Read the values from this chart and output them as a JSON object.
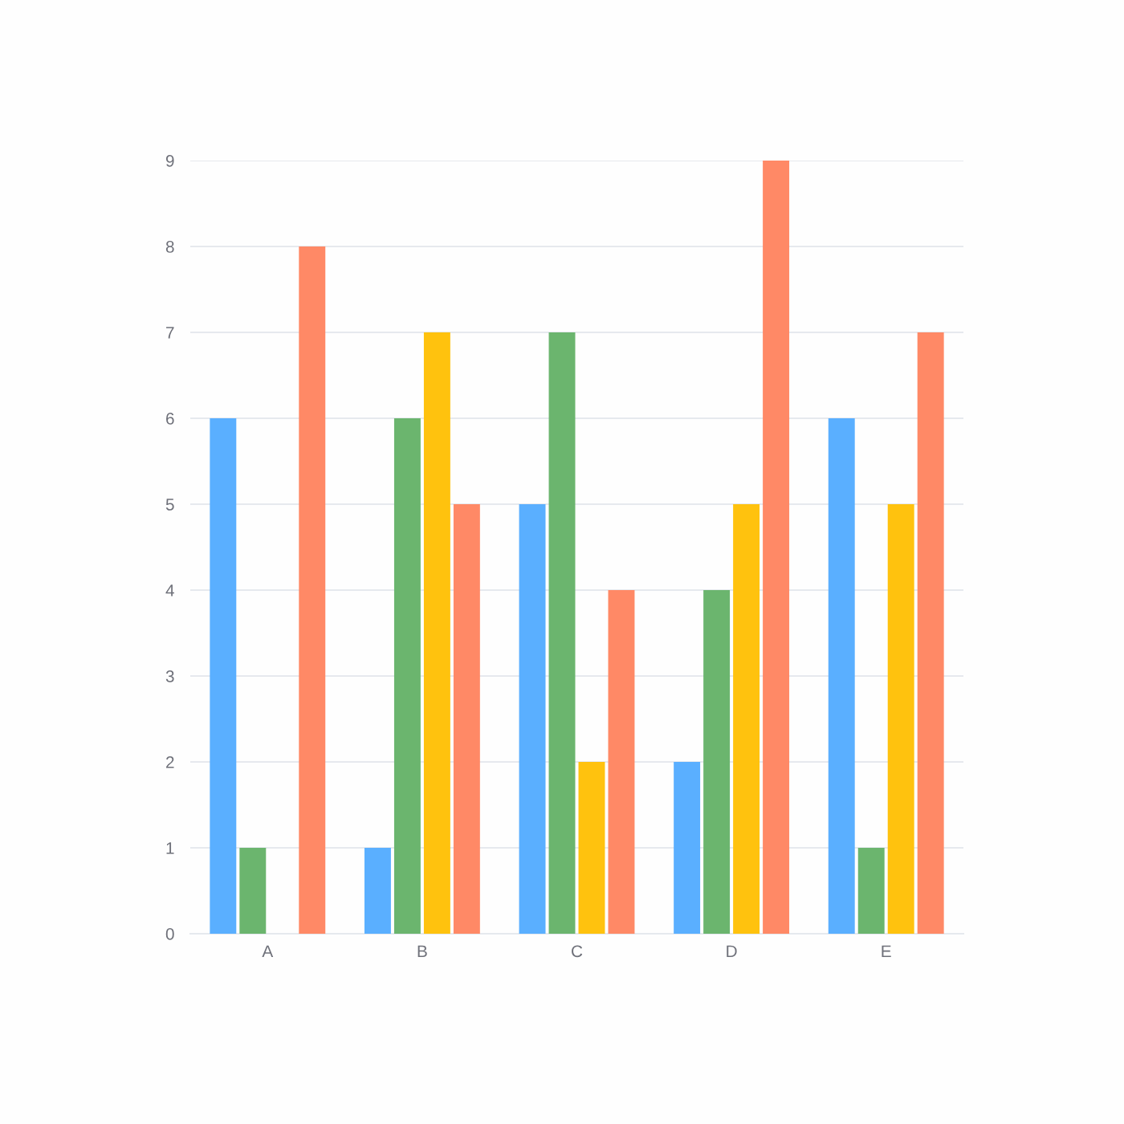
{
  "chart_data": {
    "type": "bar",
    "categories": [
      "A",
      "B",
      "C",
      "D",
      "E"
    ],
    "series": [
      {
        "color": "#5aafff",
        "values": [
          6,
          1,
          5,
          2,
          6
        ]
      },
      {
        "color": "#6bb56e",
        "values": [
          1,
          6,
          7,
          4,
          1
        ]
      },
      {
        "color": "#ffc20e",
        "values": [
          null,
          7,
          2,
          5,
          5
        ]
      },
      {
        "color": "#ff8966",
        "values": [
          8,
          5,
          4,
          9,
          7
        ]
      }
    ],
    "ylim": [
      0,
      9
    ],
    "yticks": [
      0,
      1,
      2,
      3,
      4,
      5,
      6,
      7,
      8,
      9
    ],
    "grid": "y"
  }
}
